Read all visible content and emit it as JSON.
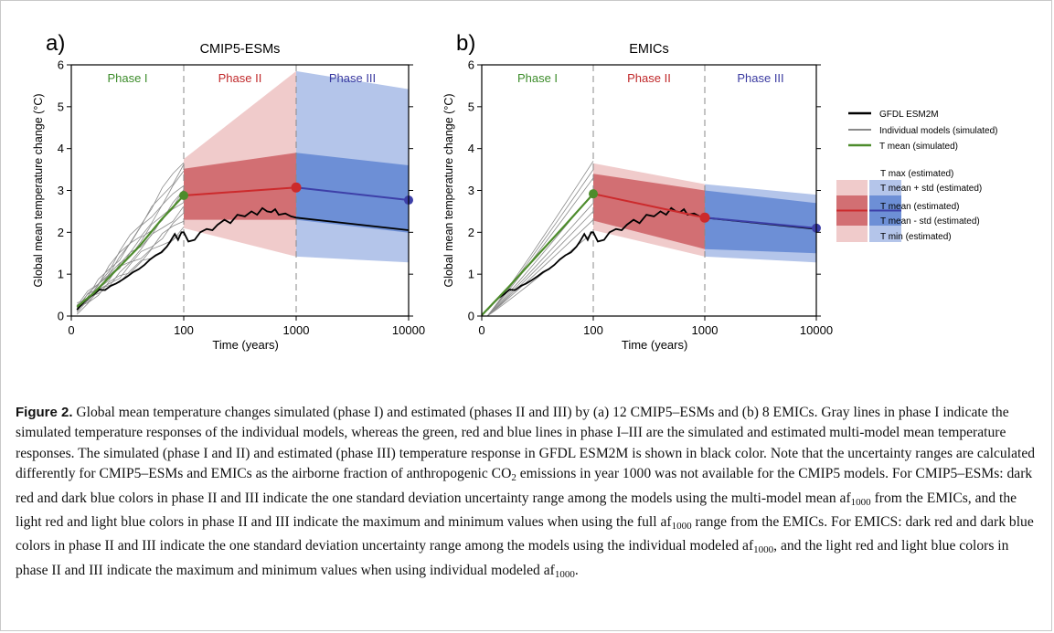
{
  "colors": {
    "phase1": "#3c8c2a",
    "phase2": "#c0282a",
    "phase3": "#3a3aa0",
    "red_dark": "#d26f73",
    "red_light": "#f0cbcb",
    "blue_dark": "#6d8fd6",
    "blue_light": "#b4c5ea",
    "mean_red": "#cc2a2c",
    "mean_blue": "#3d3fa8",
    "mean_green": "#4d8c2c",
    "gfdl": "#000000",
    "individual": "#8a8a8a"
  },
  "chart_data": [
    {
      "type": "line",
      "panel_label": "a)",
      "title": "CMIP5-ESMs",
      "xlabel": "Time (years)",
      "ylabel": "Global mean temperature change (°C)",
      "x_scale": "piecewise: linear 0–100, log 100–10000",
      "xlim": [
        0,
        10000
      ],
      "ylim": [
        0,
        6
      ],
      "x_ticks": [
        0,
        100,
        1000,
        10000
      ],
      "y_ticks": [
        0,
        1,
        2,
        3,
        4,
        5,
        6
      ],
      "phases": [
        {
          "label": "Phase I",
          "color": "#3c8c2a"
        },
        {
          "label": "Phase II",
          "color": "#c0282a"
        },
        {
          "label": "Phase III",
          "color": "#3a3aa0"
        }
      ],
      "phase_boundaries": [
        100,
        1000
      ],
      "t_mean": [
        {
          "x": 100,
          "y": 2.88
        },
        {
          "x": 1000,
          "y": 3.07
        },
        {
          "x": 10000,
          "y": 2.77
        }
      ],
      "t_mean_plus_std": [
        {
          "x": 100,
          "y": 3.52
        },
        {
          "x": 1000,
          "y": 3.9
        },
        {
          "x": 10000,
          "y": 3.6
        }
      ],
      "t_mean_minus_std": [
        {
          "x": 100,
          "y": 2.3
        },
        {
          "x": 1000,
          "y": 2.3
        },
        {
          "x": 10000,
          "y": 1.99
        }
      ],
      "t_max": [
        {
          "x": 100,
          "y": 3.75
        },
        {
          "x": 1000,
          "y": 5.85
        },
        {
          "x": 10000,
          "y": 5.42
        }
      ],
      "t_min": [
        {
          "x": 100,
          "y": 2.1
        },
        {
          "x": 1000,
          "y": 1.42
        },
        {
          "x": 10000,
          "y": 1.28
        }
      ],
      "green_mean": [
        [
          5,
          0.22
        ],
        [
          20,
          0.55
        ],
        [
          40,
          1.1
        ],
        [
          60,
          1.65
        ],
        [
          80,
          2.3
        ],
        [
          100,
          2.88
        ]
      ],
      "gfdl_end": {
        "x": 10000,
        "y": 2.05
      },
      "individual_models_endpoints": [
        3.75,
        3.6,
        3.4,
        3.2,
        3.0,
        2.95,
        2.8,
        2.6,
        2.4,
        2.35,
        2.1,
        1.95
      ]
    },
    {
      "type": "line",
      "panel_label": "b)",
      "title": "EMICs",
      "xlabel": "Time (years)",
      "ylabel": "Global mean temperature change (°C)",
      "x_scale": "piecewise: linear 0–100, log 100–10000",
      "xlim": [
        0,
        10000
      ],
      "ylim": [
        0,
        6
      ],
      "x_ticks": [
        0,
        100,
        1000,
        10000
      ],
      "y_ticks": [
        0,
        1,
        2,
        3,
        4,
        5,
        6
      ],
      "phases": [
        {
          "label": "Phase I",
          "color": "#3c8c2a"
        },
        {
          "label": "Phase II",
          "color": "#c0282a"
        },
        {
          "label": "Phase III",
          "color": "#3a3aa0"
        }
      ],
      "phase_boundaries": [
        100,
        1000
      ],
      "t_mean": [
        {
          "x": 100,
          "y": 2.92
        },
        {
          "x": 1000,
          "y": 2.35
        },
        {
          "x": 10000,
          "y": 2.1
        }
      ],
      "t_mean_plus_std": [
        {
          "x": 100,
          "y": 3.4
        },
        {
          "x": 1000,
          "y": 3.0
        },
        {
          "x": 10000,
          "y": 2.7
        }
      ],
      "t_mean_minus_std": [
        {
          "x": 100,
          "y": 2.28
        },
        {
          "x": 1000,
          "y": 1.6
        },
        {
          "x": 10000,
          "y": 1.5
        }
      ],
      "t_max": [
        {
          "x": 100,
          "y": 3.65
        },
        {
          "x": 1000,
          "y": 3.15
        },
        {
          "x": 10000,
          "y": 2.9
        }
      ],
      "t_min": [
        {
          "x": 100,
          "y": 2.05
        },
        {
          "x": 1000,
          "y": 1.42
        },
        {
          "x": 10000,
          "y": 1.28
        }
      ],
      "green_mean": [
        [
          0,
          0.02
        ],
        [
          25,
          0.72
        ],
        [
          50,
          1.45
        ],
        [
          75,
          2.18
        ],
        [
          100,
          2.92
        ]
      ],
      "gfdl_end": {
        "x": 10000,
        "y": 2.08
      },
      "individual_models_endpoints": [
        3.7,
        3.5,
        3.3,
        2.95,
        2.7,
        2.5,
        2.3,
        2.0
      ]
    }
  ],
  "gfdl_series": [
    [
      5,
      0.15
    ],
    [
      10,
      0.3
    ],
    [
      15,
      0.43
    ],
    [
      20,
      0.52
    ],
    [
      25,
      0.63
    ],
    [
      30,
      0.62
    ],
    [
      35,
      0.72
    ],
    [
      40,
      0.78
    ],
    [
      45,
      0.86
    ],
    [
      50,
      0.95
    ],
    [
      55,
      1.05
    ],
    [
      60,
      1.12
    ],
    [
      65,
      1.22
    ],
    [
      70,
      1.35
    ],
    [
      75,
      1.45
    ],
    [
      80,
      1.52
    ],
    [
      85,
      1.66
    ],
    [
      88,
      1.78
    ],
    [
      92,
      1.96
    ],
    [
      95,
      1.82
    ],
    [
      98,
      2.0
    ],
    [
      100,
      2.0
    ],
    [
      110,
      1.78
    ],
    [
      125,
      1.82
    ],
    [
      140,
      2.0
    ],
    [
      160,
      2.08
    ],
    [
      180,
      2.05
    ],
    [
      200,
      2.18
    ],
    [
      230,
      2.3
    ],
    [
      260,
      2.22
    ],
    [
      300,
      2.42
    ],
    [
      350,
      2.38
    ],
    [
      400,
      2.5
    ],
    [
      450,
      2.42
    ],
    [
      500,
      2.58
    ],
    [
      550,
      2.5
    ],
    [
      600,
      2.48
    ],
    [
      650,
      2.55
    ],
    [
      700,
      2.42
    ],
    [
      800,
      2.45
    ],
    [
      900,
      2.38
    ],
    [
      1000,
      2.35
    ]
  ],
  "legend": {
    "lines": [
      {
        "label": "GFDL ESM2M",
        "style": "gfdl"
      },
      {
        "label": "Individual models (simulated)",
        "style": "individual"
      },
      {
        "label": "T mean (simulated)",
        "style": "green"
      }
    ],
    "bands": [
      {
        "label": "T max (estimated)"
      },
      {
        "label": "T mean + std (estimated)"
      },
      {
        "label": "T mean (estimated)"
      },
      {
        "label": "T mean - std (estimated)"
      },
      {
        "label": "T min (estimated)"
      }
    ]
  },
  "caption": {
    "label": "Figure 2.",
    "part1": " Global mean temperature changes simulated (phase I) and estimated (phases II and III) by (a) 12 CMIP5–ESMs and (b) 8 EMICs. Gray lines in phase I indicate the simulated temperature responses of the individual models, whereas the green, red and blue lines in phase I–III are the simulated and estimated multi-model mean temperature responses. The simulated (phase I and II) and estimated (phase III) temperature response in GFDL ESM2M is shown in black color. Note that the uncertainty ranges are calculated differently for CMIP5–ESMs and EMICs as the airborne fraction of anthropogenic CO",
    "co2_sub": "2",
    "part2": " emissions in year 1000 was not available for the CMIP5 models. For CMIP5–ESMs: dark red and dark blue colors in phase II and III indicate the one standard deviation uncertainty range among the models using the multi-model mean af",
    "af_sub_1": "1000",
    "part3": " from the EMICs, and the light red and light blue colors in phase II and III indicate the maximum and minimum values when using the full af",
    "af_sub_2": "1000",
    "part4": " range from the EMICs. For EMICS: dark red and dark blue colors in phase II and III indicate the one standard deviation uncertainty range among the models using the individual modeled af",
    "af_sub_3": "1000",
    "part5": ", and the light red and light blue colors in phase II and III indicate the maximum and minimum values when using individual modeled af",
    "af_sub_4": "1000",
    "part6": "."
  }
}
